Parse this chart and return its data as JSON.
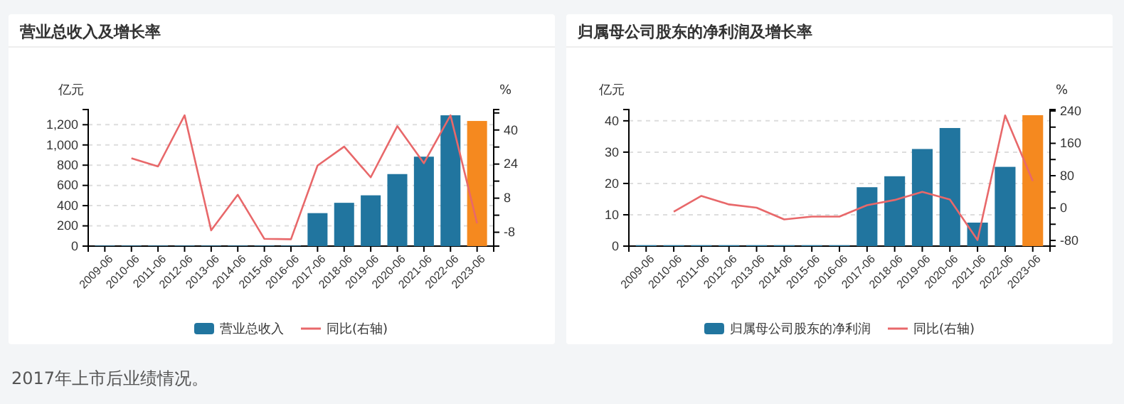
{
  "chart_data": [
    {
      "type": "bar",
      "title": "营业总收入及增长率",
      "ylabel": "亿元",
      "y2label": "%",
      "categories": [
        "2009-06",
        "2010-06",
        "2011-06",
        "2012-06",
        "2013-06",
        "2014-06",
        "2015-06",
        "2016-06",
        "2017-06",
        "2018-06",
        "2019-06",
        "2020-06",
        "2021-06",
        "2022-06",
        "2023-06"
      ],
      "series": [
        {
          "name": "营业总收入",
          "color": "#21759f",
          "colors": [
            "#21759f",
            "#21759f",
            "#21759f",
            "#21759f",
            "#21759f",
            "#21759f",
            "#21759f",
            "#21759f",
            "#21759f",
            "#21759f",
            "#21759f",
            "#21759f",
            "#21759f",
            "#21759f",
            "#f5891f"
          ],
          "values": [
            5,
            5,
            5,
            5,
            5,
            5,
            5,
            5,
            326,
            428,
            502,
            712,
            884,
            1293,
            1237
          ]
        },
        {
          "name": "同比(右轴)",
          "type": "line",
          "axis": "y2",
          "color": "#e8686a",
          "values": [
            null,
            26.7,
            22.9,
            46.9,
            -7.1,
            9.6,
            -11.1,
            -11.3,
            23.3,
            32.2,
            17.8,
            41.8,
            24.4,
            46.9,
            -3.8
          ]
        }
      ],
      "ylim": [
        0,
        1350
      ],
      "yticks": [
        0,
        {
          "value": 200,
          "label": "200"
        },
        {
          "value": 400,
          "label": "400"
        },
        {
          "value": 600,
          "label": "600"
        },
        {
          "value": 800,
          "label": "800"
        },
        {
          "value": 1000,
          "label": "1,000"
        },
        {
          "value": 1200,
          "label": "1,200"
        }
      ],
      "y2lim": [
        -14.5,
        49.6
      ],
      "y2ticks": [
        -8,
        {
          "value": 0,
          "label": null
        },
        8,
        {
          "value": 16,
          "label": null
        },
        24,
        {
          "value": 32,
          "label": null
        },
        40,
        {
          "value": 48,
          "label": null
        }
      ],
      "grid": "y",
      "legend": "bottom",
      "annotations": [
        "2017年上市后业绩情况。"
      ]
    },
    {
      "type": "bar",
      "title": "归属母公司股东的净利润及增长率",
      "ylabel": "亿元",
      "y2label": "%",
      "categories": [
        "2009-06",
        "2010-06",
        "2011-06",
        "2012-06",
        "2013-06",
        "2014-06",
        "2015-06",
        "2016-06",
        "2017-06",
        "2018-06",
        "2019-06",
        "2020-06",
        "2021-06",
        "2022-06",
        "2023-06"
      ],
      "series": [
        {
          "name": "归属母公司股东的净利润",
          "color": "#21759f",
          "colors": [
            "#21759f",
            "#21759f",
            "#21759f",
            "#21759f",
            "#21759f",
            "#21759f",
            "#21759f",
            "#21759f",
            "#21759f",
            "#21759f",
            "#21759f",
            "#21759f",
            "#21759f",
            "#21759f",
            "#f5891f"
          ],
          "values": [
            0.3,
            0.3,
            0.3,
            0.3,
            0.3,
            0.3,
            0.3,
            0.3,
            18.8,
            22.3,
            31.0,
            37.7,
            7.5,
            25.3,
            41.8
          ]
        },
        {
          "name": "同比(右轴)",
          "type": "line",
          "axis": "y2",
          "color": "#e8686a",
          "values": [
            null,
            -9,
            30,
            9,
            1,
            -28,
            -21,
            -21,
            7,
            20,
            40,
            21,
            -79,
            229,
            67
          ]
        }
      ],
      "ylim": [
        0,
        43.6
      ],
      "yticks": [
        0,
        10,
        20,
        30,
        40
      ],
      "y2lim": [
        -94,
        243.5
      ],
      "y2ticks": [
        -80,
        {
          "value": -40,
          "label": null
        },
        0,
        {
          "value": 40,
          "label": null
        },
        80,
        {
          "value": 120,
          "label": null
        },
        160,
        {
          "value": 200,
          "label": null
        },
        240
      ],
      "grid": "y",
      "legend": "bottom"
    }
  ]
}
